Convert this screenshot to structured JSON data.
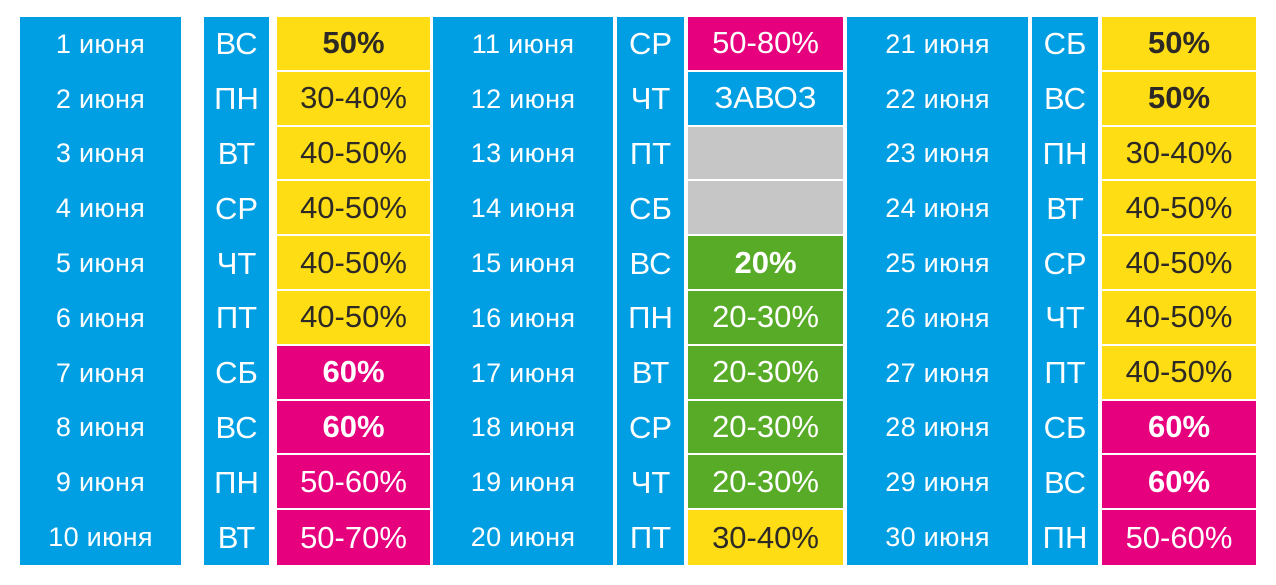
{
  "colors": {
    "blue": "#009ee2",
    "yellow": "#ffdd15",
    "magenta": "#e6007e",
    "green": "#57ab27",
    "gray": "#c6c6c6",
    "dark_text": "#2d2a26",
    "white": "#ffffff"
  },
  "groups": [
    {
      "rows": [
        {
          "date": "1 июня",
          "day": "ВС",
          "discount": "50%",
          "color": "yellow",
          "bold": true
        },
        {
          "date": "2 июня",
          "day": "ПН",
          "discount": "30-40%",
          "color": "yellow",
          "bold": false
        },
        {
          "date": "3 июня",
          "day": "ВТ",
          "discount": "40-50%",
          "color": "yellow",
          "bold": false
        },
        {
          "date": "4 июня",
          "day": "СР",
          "discount": "40-50%",
          "color": "yellow",
          "bold": false
        },
        {
          "date": "5 июня",
          "day": "ЧТ",
          "discount": "40-50%",
          "color": "yellow",
          "bold": false
        },
        {
          "date": "6 июня",
          "day": "ПТ",
          "discount": "40-50%",
          "color": "yellow",
          "bold": false
        },
        {
          "date": "7 июня",
          "day": "СБ",
          "discount": "60%",
          "color": "magenta",
          "bold": true
        },
        {
          "date": "8 июня",
          "day": "ВС",
          "discount": "60%",
          "color": "magenta",
          "bold": true
        },
        {
          "date": "9 июня",
          "day": "ПН",
          "discount": "50-60%",
          "color": "magenta",
          "bold": false
        },
        {
          "date": "10 июня",
          "day": "ВТ",
          "discount": "50-70%",
          "color": "magenta",
          "bold": false
        }
      ]
    },
    {
      "rows": [
        {
          "date": "11 июня",
          "day": "СР",
          "discount": "50-80%",
          "color": "magenta",
          "bold": false
        },
        {
          "date": "12 июня",
          "day": "ЧТ",
          "discount": "ЗАВОЗ",
          "color": "blue",
          "bold": false
        },
        {
          "date": "13 июня",
          "day": "ПТ",
          "discount": "",
          "color": "gray",
          "bold": false
        },
        {
          "date": "14 июня",
          "day": "СБ",
          "discount": "",
          "color": "gray",
          "bold": false
        },
        {
          "date": "15 июня",
          "day": "ВС",
          "discount": "20%",
          "color": "green",
          "bold": true
        },
        {
          "date": "16 июня",
          "day": "ПН",
          "discount": "20-30%",
          "color": "green",
          "bold": false
        },
        {
          "date": "17 июня",
          "day": "ВТ",
          "discount": "20-30%",
          "color": "green",
          "bold": false
        },
        {
          "date": "18 июня",
          "day": "СР",
          "discount": "20-30%",
          "color": "green",
          "bold": false
        },
        {
          "date": "19 июня",
          "day": "ЧТ",
          "discount": "20-30%",
          "color": "green",
          "bold": false
        },
        {
          "date": "20 июня",
          "day": "ПТ",
          "discount": "30-40%",
          "color": "yellow",
          "bold": false
        }
      ]
    },
    {
      "rows": [
        {
          "date": "21 июня",
          "day": "СБ",
          "discount": "50%",
          "color": "yellow",
          "bold": true
        },
        {
          "date": "22 июня",
          "day": "ВС",
          "discount": "50%",
          "color": "yellow",
          "bold": true
        },
        {
          "date": "23 июня",
          "day": "ПН",
          "discount": "30-40%",
          "color": "yellow",
          "bold": false
        },
        {
          "date": "24 июня",
          "day": "ВТ",
          "discount": "40-50%",
          "color": "yellow",
          "bold": false
        },
        {
          "date": "25 июня",
          "day": "СР",
          "discount": "40-50%",
          "color": "yellow",
          "bold": false
        },
        {
          "date": "26 июня",
          "day": "ЧТ",
          "discount": "40-50%",
          "color": "yellow",
          "bold": false
        },
        {
          "date": "27 июня",
          "day": "ПТ",
          "discount": "40-50%",
          "color": "yellow",
          "bold": false
        },
        {
          "date": "28 июня",
          "day": "СБ",
          "discount": "60%",
          "color": "magenta",
          "bold": true
        },
        {
          "date": "29 июня",
          "day": "ВС",
          "discount": "60%",
          "color": "magenta",
          "bold": true
        },
        {
          "date": "30 июня",
          "day": "ПН",
          "discount": "50-60%",
          "color": "magenta",
          "bold": false
        }
      ]
    }
  ]
}
